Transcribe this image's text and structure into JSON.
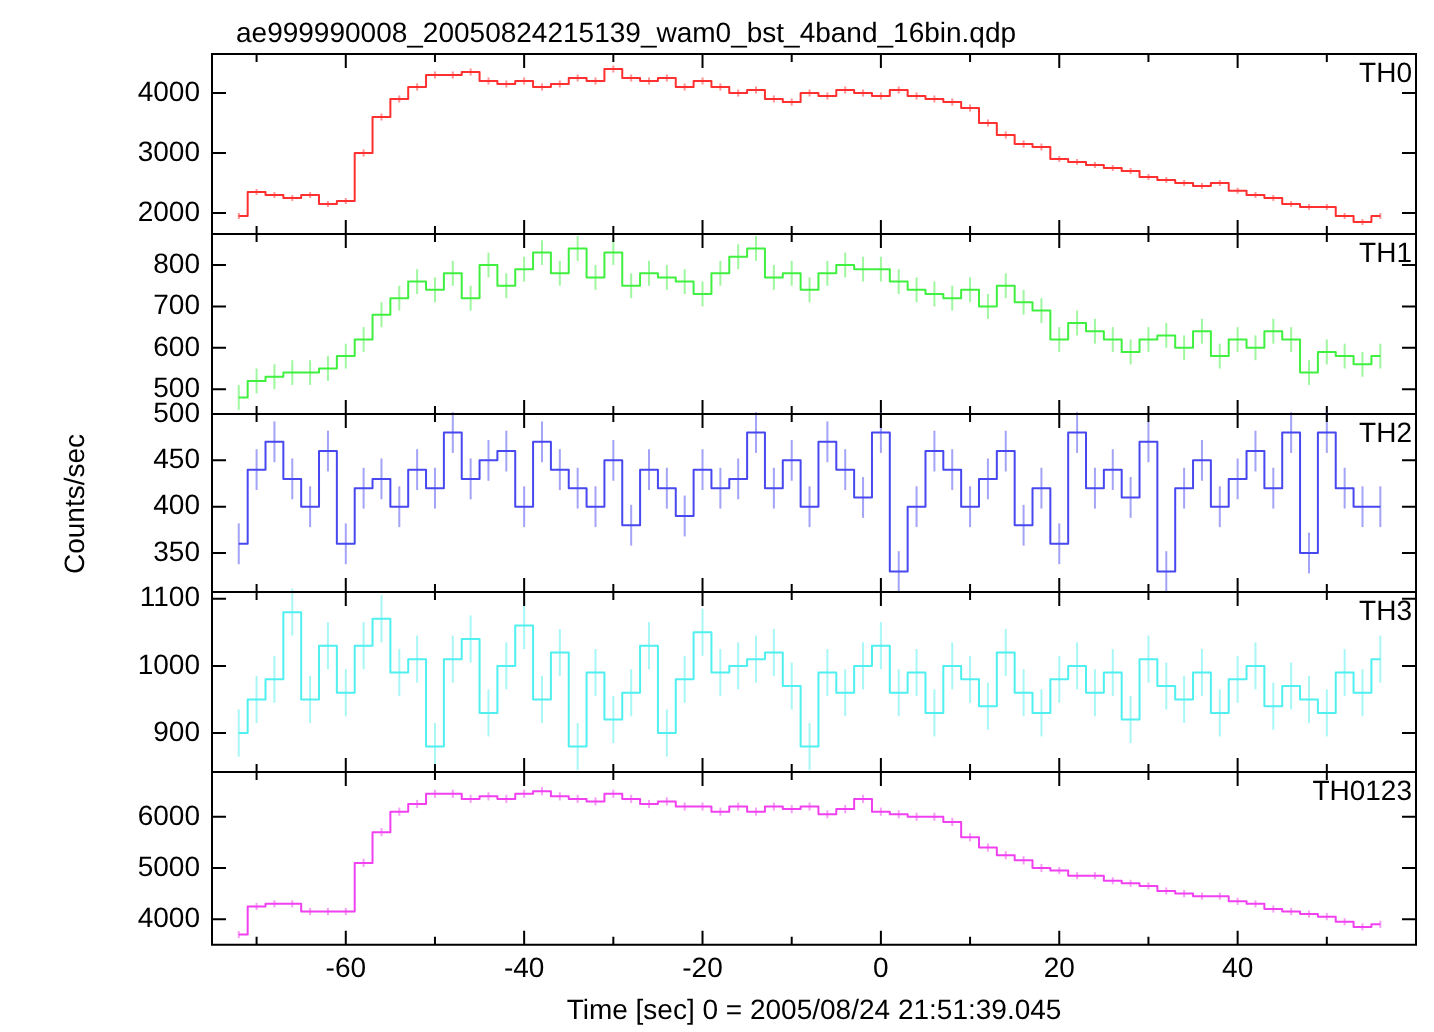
{
  "chart_data": [
    {
      "type": "step",
      "title": "ae999990008_20050824215139_wam0_bst_4band_16bin.qdp",
      "tick_labels": "y",
      "xlim": [
        -75,
        60
      ],
      "ylim": [
        1650,
        4650
      ],
      "yticks": [
        2000,
        3000,
        4000
      ],
      "xticks": [
        {
          "value": -70,
          "label": null
        },
        -60,
        {
          "value": -50,
          "label": null
        },
        -40,
        {
          "value": -30,
          "label": null
        },
        -20,
        {
          "value": -10,
          "label": null
        },
        0,
        {
          "value": 10,
          "label": null
        },
        20,
        {
          "value": 30,
          "label": null
        },
        40,
        {
          "value": 50,
          "label": null
        }
      ],
      "x": [
        -72,
        -70,
        -68,
        -66,
        -64,
        -62,
        -60,
        -58,
        -56,
        -54,
        -52,
        -50,
        -48,
        -46,
        -44,
        -42,
        -40,
        -38,
        -36,
        -34,
        -32,
        -30,
        -28,
        -26,
        -24,
        -22,
        -20,
        -18,
        -16,
        -14,
        -12,
        -10,
        -8,
        -6,
        -4,
        -2,
        0,
        2,
        4,
        6,
        8,
        10,
        12,
        14,
        16,
        18,
        20,
        22,
        24,
        26,
        28,
        30,
        32,
        34,
        36,
        38,
        40,
        42,
        44,
        46,
        48,
        50,
        52,
        54,
        56
      ],
      "series": [
        {
          "name": "TH0",
          "color": "#ff3030",
          "values": [
            1950,
            2350,
            2300,
            2250,
            2300,
            2150,
            2200,
            3000,
            3600,
            3900,
            4100,
            4300,
            4300,
            4350,
            4200,
            4150,
            4200,
            4100,
            4150,
            4250,
            4200,
            4400,
            4250,
            4200,
            4250,
            4100,
            4200,
            4100,
            4000,
            4050,
            3900,
            3850,
            4000,
            3950,
            4050,
            4000,
            3950,
            4050,
            3950,
            3900,
            3850,
            3750,
            3500,
            3300,
            3150,
            3100,
            2900,
            2850,
            2800,
            2750,
            2700,
            2600,
            2550,
            2500,
            2450,
            2500,
            2370,
            2300,
            2250,
            2150,
            2100,
            2100,
            1950,
            1850,
            1950
          ],
          "errors": [
            50,
            50,
            50,
            50,
            50,
            50,
            50,
            60,
            60,
            60,
            60,
            60,
            60,
            60,
            60,
            60,
            60,
            60,
            60,
            60,
            60,
            60,
            60,
            60,
            60,
            60,
            60,
            60,
            60,
            60,
            60,
            60,
            60,
            60,
            60,
            60,
            60,
            60,
            60,
            60,
            60,
            60,
            60,
            60,
            60,
            60,
            50,
            50,
            50,
            50,
            50,
            50,
            50,
            50,
            50,
            50,
            50,
            50,
            50,
            50,
            50,
            50,
            50,
            50,
            50
          ]
        }
      ]
    },
    {
      "type": "step",
      "tick_labels": "y",
      "xlim": [
        -75,
        60
      ],
      "ylim": [
        440,
        875
      ],
      "yticks": [
        500,
        600,
        700,
        800
      ],
      "xticks": [
        {
          "value": -70,
          "label": null
        },
        -60,
        {
          "value": -50,
          "label": null
        },
        -40,
        {
          "value": -30,
          "label": null
        },
        -20,
        {
          "value": -10,
          "label": null
        },
        0,
        {
          "value": 10,
          "label": null
        },
        20,
        {
          "value": 30,
          "label": null
        },
        40,
        {
          "value": 50,
          "label": null
        }
      ],
      "x": [
        -72,
        -70,
        -68,
        -66,
        -64,
        -62,
        -60,
        -58,
        -56,
        -54,
        -52,
        -50,
        -48,
        -46,
        -44,
        -42,
        -40,
        -38,
        -36,
        -34,
        -32,
        -30,
        -28,
        -26,
        -24,
        -22,
        -20,
        -18,
        -16,
        -14,
        -12,
        -10,
        -8,
        -6,
        -4,
        -2,
        0,
        2,
        4,
        6,
        8,
        10,
        12,
        14,
        16,
        18,
        20,
        22,
        24,
        26,
        28,
        30,
        32,
        34,
        36,
        38,
        40,
        42,
        44,
        46,
        48,
        50,
        52,
        54,
        56
      ],
      "series": [
        {
          "name": "TH1",
          "color": "#40f040",
          "values": [
            480,
            520,
            530,
            540,
            540,
            550,
            580,
            620,
            680,
            720,
            760,
            740,
            780,
            720,
            800,
            750,
            790,
            830,
            780,
            840,
            770,
            830,
            750,
            780,
            770,
            760,
            730,
            780,
            820,
            840,
            770,
            780,
            740,
            780,
            800,
            790,
            790,
            760,
            740,
            730,
            720,
            740,
            700,
            750,
            710,
            690,
            620,
            660,
            640,
            620,
            590,
            620,
            630,
            600,
            640,
            580,
            620,
            600,
            640,
            620,
            540,
            590,
            580,
            560,
            580
          ],
          "errors": [
            30,
            30,
            30,
            30,
            30,
            30,
            30,
            30,
            30,
            30,
            30,
            30,
            30,
            30,
            30,
            30,
            30,
            30,
            30,
            30,
            30,
            30,
            30,
            30,
            30,
            30,
            30,
            30,
            30,
            30,
            30,
            30,
            30,
            30,
            30,
            30,
            30,
            30,
            30,
            30,
            30,
            30,
            30,
            30,
            30,
            30,
            30,
            30,
            30,
            30,
            30,
            30,
            30,
            30,
            30,
            30,
            30,
            30,
            30,
            30,
            30,
            30,
            30,
            30,
            30
          ]
        }
      ]
    },
    {
      "type": "step",
      "ylabel": "Counts/sec",
      "tick_labels": "y",
      "xlim": [
        -75,
        60
      ],
      "ylim": [
        308,
        500
      ],
      "yticks": [
        350,
        400,
        450,
        500
      ],
      "xticks": [
        {
          "value": -70,
          "label": null
        },
        -60,
        {
          "value": -50,
          "label": null
        },
        -40,
        {
          "value": -30,
          "label": null
        },
        -20,
        {
          "value": -10,
          "label": null
        },
        0,
        {
          "value": 10,
          "label": null
        },
        20,
        {
          "value": 30,
          "label": null
        },
        40,
        {
          "value": 50,
          "label": null
        }
      ],
      "x": [
        -72,
        -70,
        -68,
        -66,
        -64,
        -62,
        -60,
        -58,
        -56,
        -54,
        -52,
        -50,
        -48,
        -46,
        -44,
        -42,
        -40,
        -38,
        -36,
        -34,
        -32,
        -30,
        -28,
        -26,
        -24,
        -22,
        -20,
        -18,
        -16,
        -14,
        -12,
        -10,
        -8,
        -6,
        -4,
        -2,
        0,
        2,
        4,
        6,
        8,
        10,
        12,
        14,
        16,
        18,
        20,
        22,
        24,
        26,
        28,
        30,
        32,
        34,
        36,
        38,
        40,
        42,
        44,
        46,
        48,
        50,
        52,
        54,
        56
      ],
      "series": [
        {
          "name": "TH2",
          "color": "#4848f0",
          "values": [
            360,
            440,
            470,
            430,
            400,
            460,
            360,
            420,
            430,
            400,
            440,
            420,
            480,
            430,
            450,
            460,
            400,
            470,
            440,
            420,
            400,
            450,
            380,
            440,
            420,
            390,
            440,
            420,
            430,
            480,
            420,
            450,
            400,
            470,
            440,
            410,
            480,
            330,
            400,
            460,
            440,
            400,
            430,
            460,
            380,
            420,
            360,
            480,
            420,
            440,
            410,
            470,
            330,
            420,
            450,
            400,
            430,
            460,
            420,
            480,
            350,
            480,
            420,
            400,
            400
          ],
          "errors": [
            22,
            22,
            22,
            22,
            22,
            22,
            22,
            22,
            22,
            22,
            22,
            22,
            22,
            22,
            22,
            22,
            22,
            22,
            22,
            22,
            22,
            22,
            22,
            22,
            22,
            22,
            22,
            22,
            22,
            22,
            22,
            22,
            22,
            22,
            22,
            22,
            22,
            22,
            22,
            22,
            22,
            22,
            22,
            22,
            22,
            22,
            22,
            22,
            22,
            22,
            22,
            22,
            22,
            22,
            22,
            22,
            22,
            22,
            22,
            22,
            22,
            22,
            22,
            22,
            22
          ]
        }
      ]
    },
    {
      "type": "step",
      "tick_labels": "y",
      "xlim": [
        -75,
        60
      ],
      "ylim": [
        842,
        1110
      ],
      "yticks": [
        900,
        1000,
        1100
      ],
      "xticks": [
        {
          "value": -70,
          "label": null
        },
        -60,
        {
          "value": -50,
          "label": null
        },
        -40,
        {
          "value": -30,
          "label": null
        },
        -20,
        {
          "value": -10,
          "label": null
        },
        0,
        {
          "value": 10,
          "label": null
        },
        20,
        {
          "value": 30,
          "label": null
        },
        40,
        {
          "value": 50,
          "label": null
        }
      ],
      "x": [
        -72,
        -70,
        -68,
        -66,
        -64,
        -62,
        -60,
        -58,
        -56,
        -54,
        -52,
        -50,
        -48,
        -46,
        -44,
        -42,
        -40,
        -38,
        -36,
        -34,
        -32,
        -30,
        -28,
        -26,
        -24,
        -22,
        -20,
        -18,
        -16,
        -14,
        -12,
        -10,
        -8,
        -6,
        -4,
        -2,
        0,
        2,
        4,
        6,
        8,
        10,
        12,
        14,
        16,
        18,
        20,
        22,
        24,
        26,
        28,
        30,
        32,
        34,
        36,
        38,
        40,
        42,
        44,
        46,
        48,
        50,
        52,
        54,
        56
      ],
      "series": [
        {
          "name": "TH3",
          "color": "#50f0f0",
          "values": [
            900,
            950,
            980,
            1080,
            950,
            1030,
            960,
            1030,
            1070,
            990,
            1010,
            880,
            1010,
            1040,
            930,
            1000,
            1060,
            950,
            1020,
            880,
            990,
            920,
            960,
            1030,
            900,
            980,
            1050,
            990,
            1000,
            1010,
            1020,
            970,
            880,
            990,
            960,
            1000,
            1030,
            960,
            990,
            930,
            1000,
            980,
            940,
            1020,
            960,
            930,
            980,
            1000,
            960,
            990,
            920,
            1010,
            970,
            950,
            990,
            930,
            980,
            1000,
            940,
            970,
            950,
            930,
            990,
            960,
            1010
          ],
          "errors": [
            35,
            35,
            35,
            35,
            35,
            35,
            35,
            35,
            35,
            35,
            35,
            35,
            35,
            35,
            35,
            35,
            35,
            35,
            35,
            35,
            35,
            35,
            35,
            35,
            35,
            35,
            35,
            35,
            35,
            35,
            35,
            35,
            35,
            35,
            35,
            35,
            35,
            35,
            35,
            35,
            35,
            35,
            35,
            35,
            35,
            35,
            35,
            35,
            35,
            35,
            35,
            35,
            35,
            35,
            35,
            35,
            35,
            35,
            35,
            35,
            35,
            35,
            35,
            35,
            35
          ]
        }
      ]
    },
    {
      "type": "step",
      "xlabel": "Time [sec] 0 = 2005/08/24 21:51:39.045",
      "xlim": [
        -75,
        60
      ],
      "ylim": [
        3500,
        6875
      ],
      "yticks": [
        4000,
        5000,
        6000
      ],
      "xticks": [
        {
          "value": -70,
          "label": null
        },
        -60,
        {
          "value": -50,
          "label": null
        },
        -40,
        {
          "value": -30,
          "label": null
        },
        -20,
        {
          "value": -10,
          "label": null
        },
        0,
        {
          "value": 10,
          "label": null
        },
        20,
        {
          "value": 30,
          "label": null
        },
        40,
        {
          "value": 50,
          "label": null
        }
      ],
      "x": [
        -72,
        -70,
        -68,
        -66,
        -64,
        -62,
        -60,
        -58,
        -56,
        -54,
        -52,
        -50,
        -48,
        -46,
        -44,
        -42,
        -40,
        -38,
        -36,
        -34,
        -32,
        -30,
        -28,
        -26,
        -24,
        -22,
        -20,
        -18,
        -16,
        -14,
        -12,
        -10,
        -8,
        -6,
        -4,
        -2,
        0,
        2,
        4,
        6,
        8,
        10,
        12,
        14,
        16,
        18,
        20,
        22,
        24,
        26,
        28,
        30,
        32,
        34,
        36,
        38,
        40,
        42,
        44,
        46,
        48,
        50,
        52,
        54,
        56
      ],
      "series": [
        {
          "name": "TH0123",
          "color": "#f040f0",
          "values": [
            3700,
            4250,
            4300,
            4300,
            4150,
            4150,
            4150,
            5100,
            5700,
            6100,
            6250,
            6450,
            6450,
            6350,
            6400,
            6350,
            6450,
            6500,
            6400,
            6350,
            6300,
            6450,
            6350,
            6250,
            6300,
            6200,
            6200,
            6100,
            6200,
            6100,
            6200,
            6150,
            6200,
            6050,
            6150,
            6350,
            6100,
            6050,
            6000,
            6000,
            5900,
            5600,
            5400,
            5250,
            5150,
            5000,
            4950,
            4850,
            4850,
            4750,
            4700,
            4650,
            4550,
            4500,
            4450,
            4450,
            4350,
            4300,
            4200,
            4150,
            4100,
            4050,
            3950,
            3850,
            3900
          ],
          "errors": [
            70,
            70,
            70,
            70,
            70,
            70,
            70,
            80,
            80,
            80,
            80,
            80,
            80,
            80,
            80,
            80,
            80,
            80,
            80,
            80,
            80,
            80,
            80,
            80,
            80,
            80,
            80,
            80,
            80,
            80,
            80,
            80,
            80,
            80,
            80,
            80,
            80,
            80,
            80,
            80,
            80,
            80,
            80,
            80,
            80,
            80,
            70,
            70,
            70,
            70,
            70,
            70,
            70,
            70,
            70,
            70,
            70,
            70,
            70,
            70,
            70,
            70,
            70,
            70,
            70
          ]
        }
      ]
    }
  ]
}
